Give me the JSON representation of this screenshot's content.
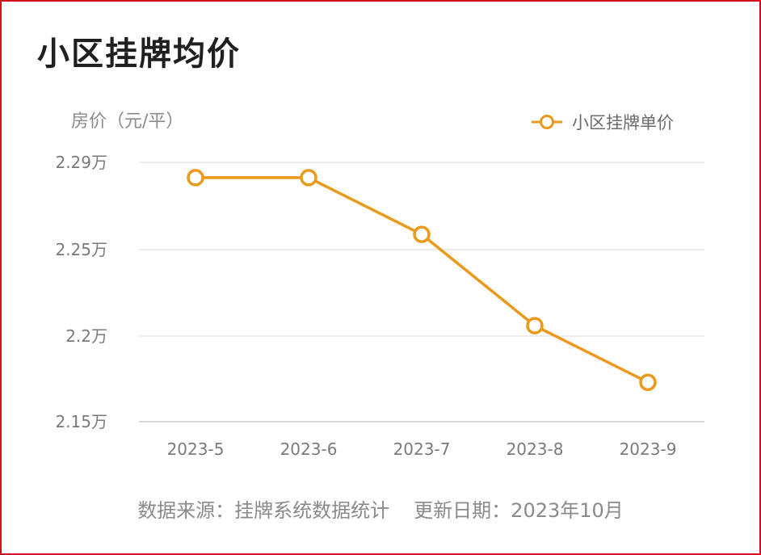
{
  "chart_data": {
    "type": "line",
    "title": "小区挂牌均价",
    "ylabel": "房价（元/平）",
    "xlabel": "",
    "categories": [
      "2023-5",
      "2023-6",
      "2023-7",
      "2023-8",
      "2023-9"
    ],
    "series": [
      {
        "name": "小区挂牌单价",
        "values": [
          22830,
          22830,
          22570,
          22060,
          21730
        ],
        "color": "#e99a1c"
      }
    ],
    "yticks": [
      21500,
      22000,
      22500,
      22900
    ],
    "ytick_labels": [
      "2.15万",
      "2.2万",
      "2.25万",
      "2.29万"
    ],
    "ylim": [
      21500,
      22900
    ],
    "grid": true,
    "legend_position": "top-right"
  },
  "footer": {
    "source": "数据来源：挂牌系统数据统计",
    "updated": "更新日期：2023年10月"
  },
  "colors": {
    "frame_border": "#d40f1c",
    "line": "#e99a1c",
    "grid": "#e6e6e6"
  }
}
